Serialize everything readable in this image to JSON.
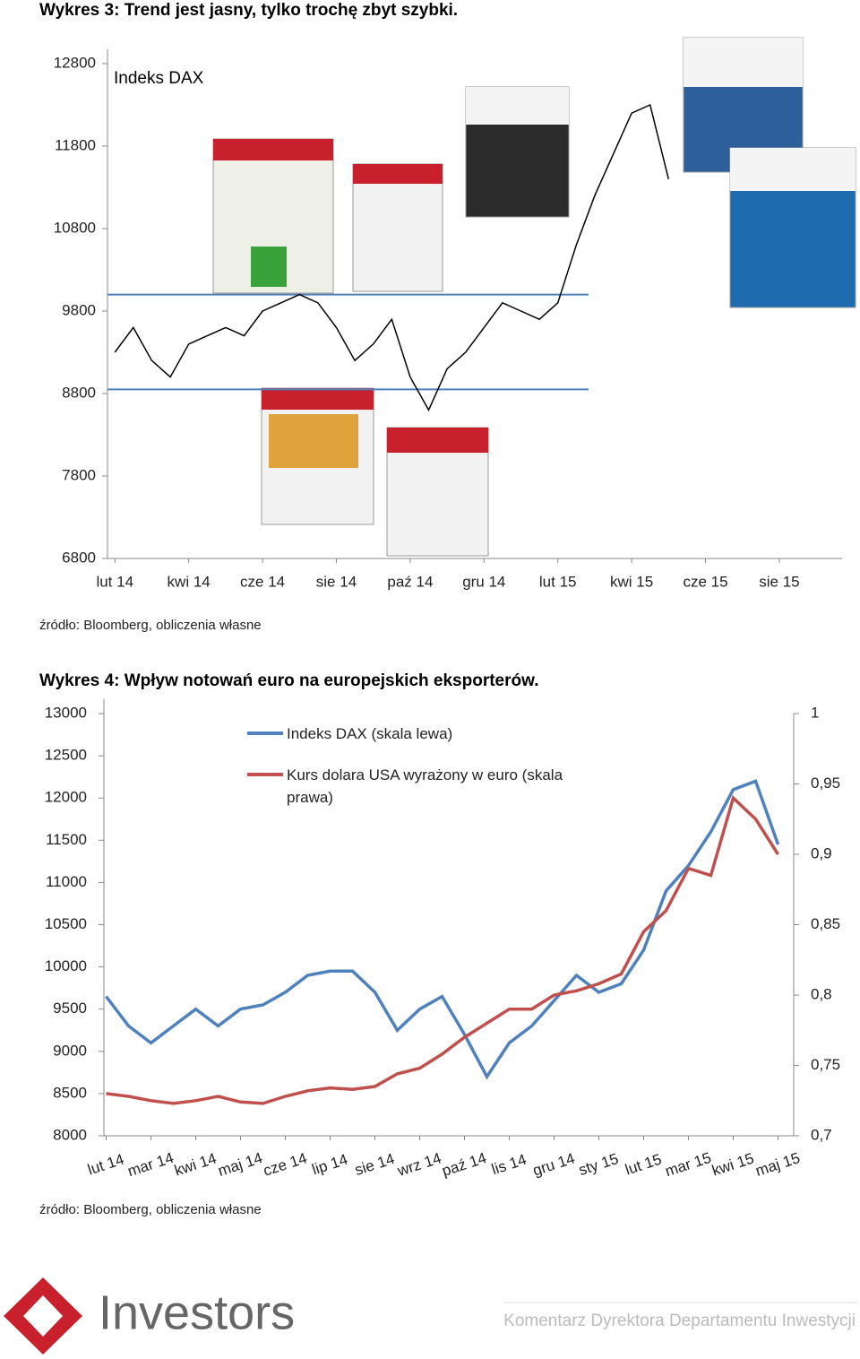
{
  "chart_data": [
    {
      "type": "line",
      "title": "Wykres 3: Trend jest jasny, tylko trochę zbyt szybki.",
      "source": "źródło: Bloomberg, obliczenia własne",
      "x": [
        0,
        0.5,
        1,
        1.5,
        2,
        2.5,
        3,
        3.5,
        4,
        4.5,
        5,
        5.5,
        6,
        6.5,
        7,
        7.5,
        8,
        8.5,
        9,
        9.5,
        10,
        10.5,
        11,
        11.5,
        12,
        12.5,
        13,
        13.5,
        14,
        14.5,
        15
      ],
      "series": [
        {
          "name": "Indeks DAX",
          "color": "#000000",
          "values": [
            9300,
            9600,
            9200,
            9000,
            9400,
            9500,
            9600,
            9500,
            9800,
            9900,
            10000,
            9900,
            9600,
            9200,
            9400,
            9700,
            9000,
            8600,
            9100,
            9300,
            9600,
            9900,
            9800,
            9700,
            9900,
            10600,
            11200,
            11700,
            12200,
            12300,
            11400
          ]
        }
      ],
      "reference_lines": [
        10000,
        8850
      ],
      "reference_color": "#4f81bd",
      "xlim": [
        -0.2,
        19.7
      ],
      "xticks": [
        {
          "value": 0,
          "label": "lut 14"
        },
        {
          "value": 2,
          "label": "kwi 14"
        },
        {
          "value": 4,
          "label": "cze 14"
        },
        {
          "value": 6,
          "label": "sie 14"
        },
        {
          "value": 8,
          "label": "paź 14"
        },
        {
          "value": 10,
          "label": "gru 14"
        },
        {
          "value": 12,
          "label": "lut 15"
        },
        {
          "value": 14,
          "label": "kwi 15"
        },
        {
          "value": 16,
          "label": "cze 15"
        },
        {
          "value": 18,
          "label": "sie 15"
        }
      ],
      "ylim": [
        6800,
        12800
      ],
      "yticks": [
        6800,
        7800,
        8800,
        9800,
        10800,
        11800,
        12800
      ]
    },
    {
      "type": "line",
      "title": "Wykres 4: Wpływ notowań euro na europejskich eksporterów.",
      "source": "źródło: Bloomberg, obliczenia własne",
      "x": [
        0,
        0.5,
        1,
        1.5,
        2,
        2.5,
        3,
        3.5,
        4,
        4.5,
        5,
        5.5,
        6,
        6.5,
        7,
        7.5,
        8,
        8.5,
        9,
        9.5,
        10,
        10.5,
        11,
        11.5,
        12,
        12.5,
        13,
        13.5,
        14,
        14.5,
        15
      ],
      "series": [
        {
          "name": "Indeks DAX (skala lewa)",
          "color": "#4f81bd",
          "values": [
            9650,
            9300,
            9100,
            9300,
            9500,
            9300,
            9500,
            9550,
            9700,
            9900,
            9950,
            9950,
            9700,
            9250,
            9500,
            9650,
            9200,
            8700,
            9100,
            9300,
            9600,
            9900,
            9700,
            9800,
            10200,
            10900,
            11200,
            11600,
            12100,
            12200,
            11450
          ]
        },
        {
          "name": "Kurs dolara USA wyrażony w euro (skala prawa)",
          "color": "#c0504d",
          "axis": "y2",
          "values": [
            0.73,
            0.728,
            0.725,
            0.723,
            0.725,
            0.728,
            0.724,
            0.723,
            0.728,
            0.732,
            0.734,
            0.733,
            0.735,
            0.744,
            0.748,
            0.758,
            0.77,
            0.78,
            0.79,
            0.79,
            0.8,
            0.803,
            0.808,
            0.815,
            0.845,
            0.86,
            0.89,
            0.885,
            0.94,
            0.925,
            0.9
          ]
        }
      ],
      "xlim": [
        -0.05,
        15.35
      ],
      "xticks": [
        {
          "value": 0,
          "label": "lut 14"
        },
        {
          "value": 1,
          "label": "mar 14"
        },
        {
          "value": 2,
          "label": "kwi 14"
        },
        {
          "value": 3,
          "label": "maj 14"
        },
        {
          "value": 4,
          "label": "cze 14"
        },
        {
          "value": 5,
          "label": "lip 14"
        },
        {
          "value": 6,
          "label": "sie 14"
        },
        {
          "value": 7,
          "label": "wrz 14"
        },
        {
          "value": 8,
          "label": "paź 14"
        },
        {
          "value": 9,
          "label": "lis 14"
        },
        {
          "value": 10,
          "label": "gru 14"
        },
        {
          "value": 11,
          "label": "sty 15"
        },
        {
          "value": 12,
          "label": "lut 15"
        },
        {
          "value": 13,
          "label": "mar 15"
        },
        {
          "value": 14,
          "label": "kwi 15"
        },
        {
          "value": 15,
          "label": "maj 15"
        }
      ],
      "ylim": [
        8000,
        13000
      ],
      "yticks": [
        8000,
        8500,
        9000,
        9500,
        10000,
        10500,
        11000,
        11500,
        12000,
        12500,
        13000
      ],
      "y2lim": [
        0.7,
        1
      ],
      "y2ticks": [
        {
          "value": 0.7,
          "label": "0,7"
        },
        {
          "value": 0.75,
          "label": "0,75"
        },
        {
          "value": 0.8,
          "label": "0,8"
        },
        {
          "value": 0.85,
          "label": "0,85"
        },
        {
          "value": 0.9,
          "label": "0,9"
        },
        {
          "value": 0.95,
          "label": "0,95"
        },
        {
          "value": 1,
          "label": "1"
        }
      ]
    }
  ],
  "footer": {
    "logo": "Investors",
    "text": "Komentarz Dyrektora Departamentu Inwestycji"
  }
}
